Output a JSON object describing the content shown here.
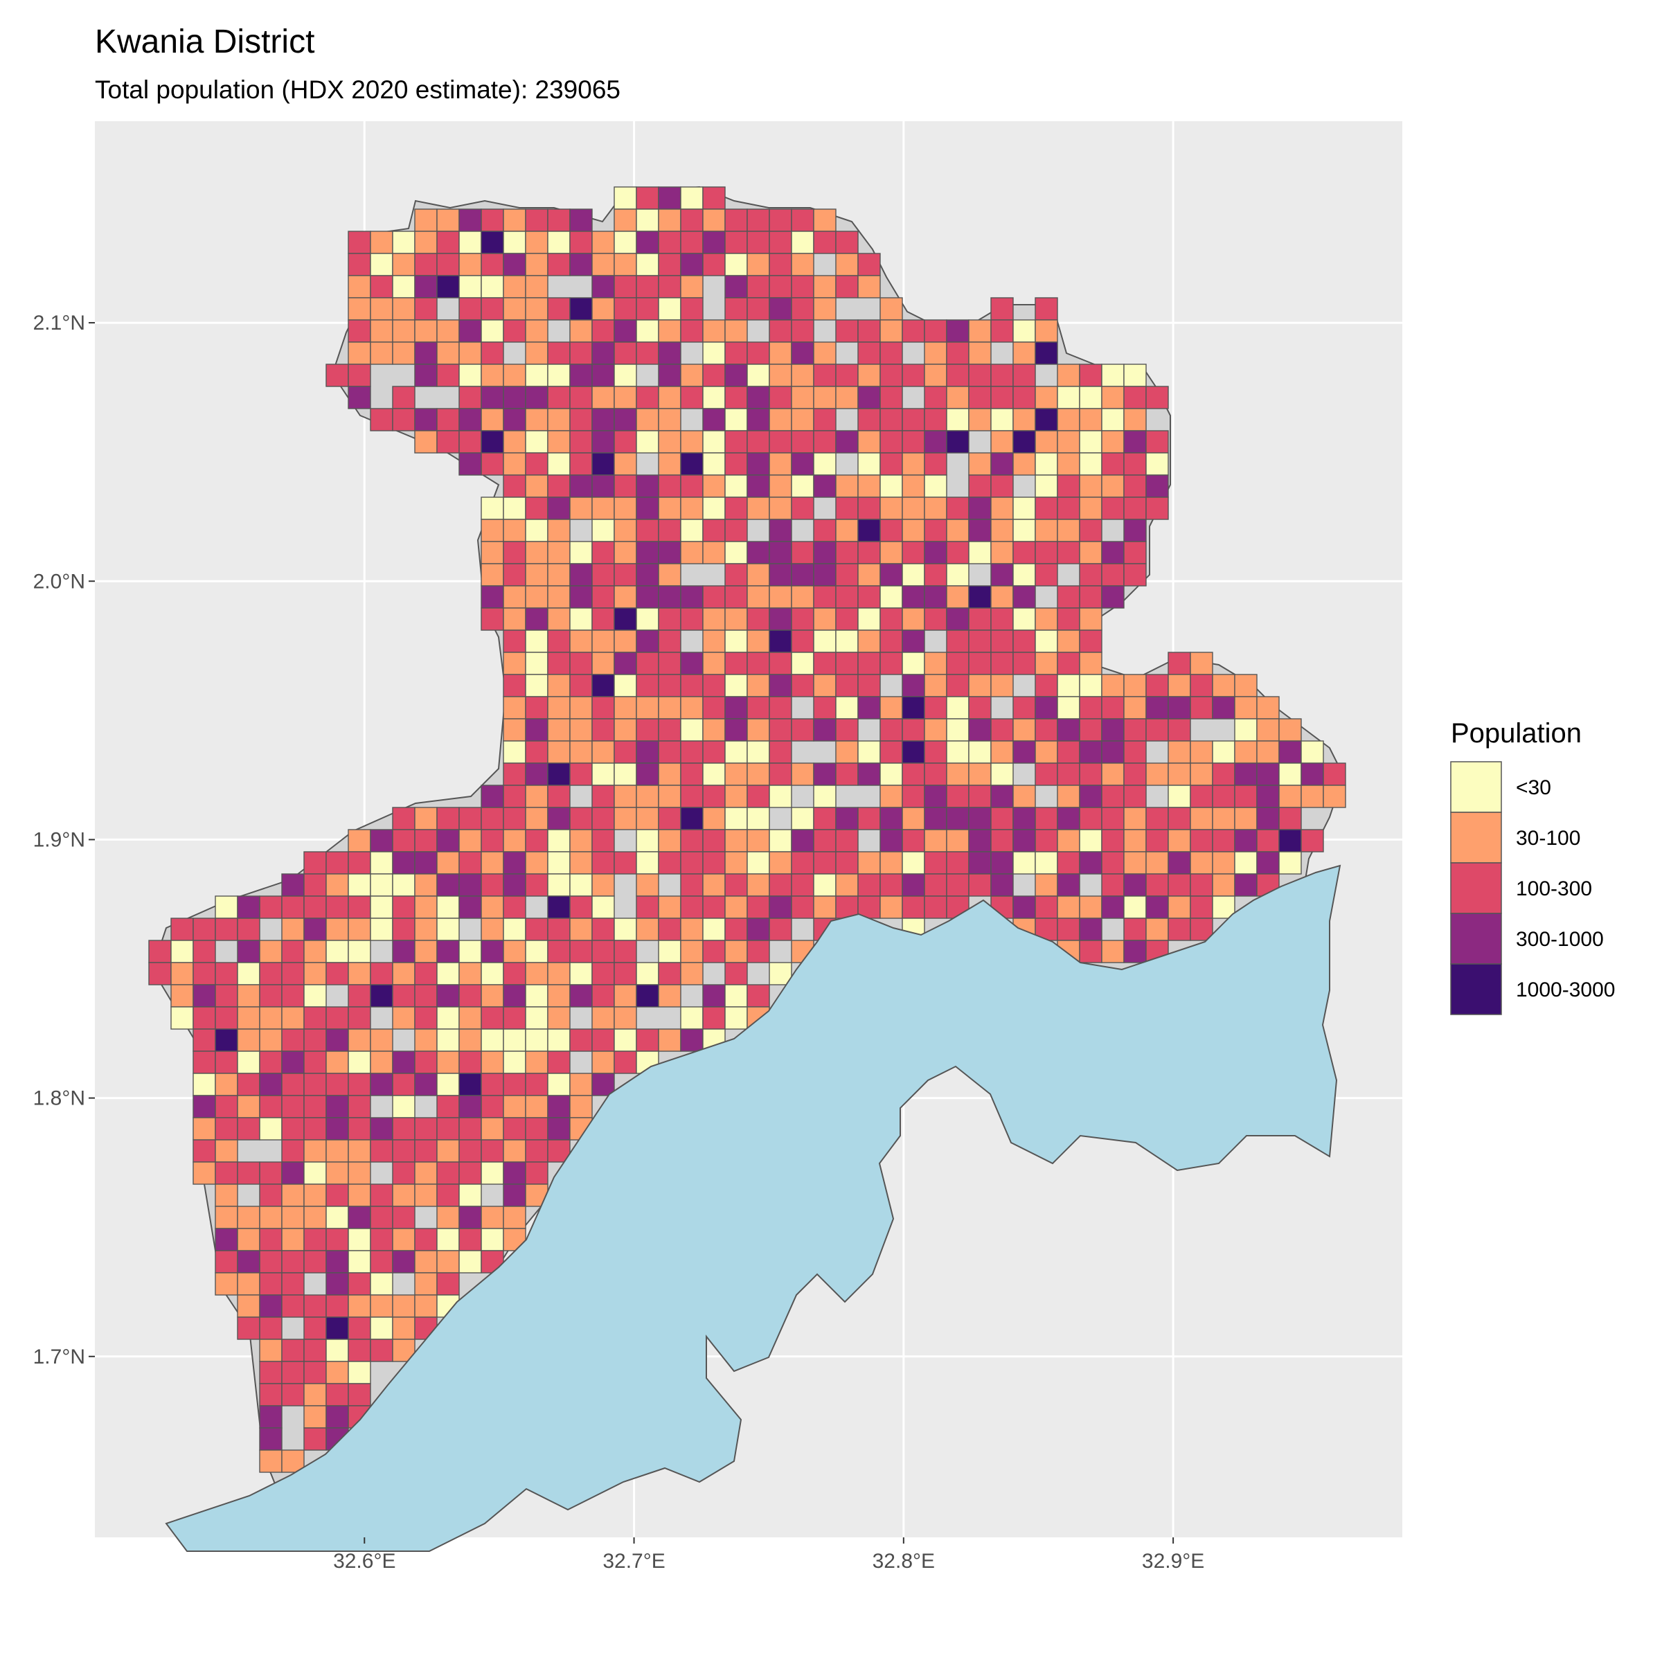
{
  "title": "Kwania District",
  "subtitle": "Total population (HDX 2020 estimate): 239065",
  "map": {
    "x_ticks": [
      {
        "value": 32.6,
        "label": "32.6°E"
      },
      {
        "value": 32.7,
        "label": "32.7°E"
      },
      {
        "value": 32.8,
        "label": "32.8°E"
      },
      {
        "value": 32.9,
        "label": "32.9°E"
      }
    ],
    "y_ticks": [
      {
        "value": 2.1,
        "label": "2.1°N"
      },
      {
        "value": 2.0,
        "label": "2.0°N"
      },
      {
        "value": 1.9,
        "label": "1.9°N"
      },
      {
        "value": 1.8,
        "label": "1.8°N"
      },
      {
        "value": 1.7,
        "label": "1.7°N"
      }
    ],
    "xlim": [
      32.5,
      32.985
    ],
    "ylim": [
      1.63,
      2.178
    ],
    "colors": {
      "panel_background": "#ebebeb",
      "grid": "#ffffff",
      "district_land": "#d3d3d3",
      "lake": "#add8e6",
      "outline": "#555555"
    }
  },
  "legend": {
    "title": "Population",
    "position": "right",
    "entries": [
      {
        "label": "<30",
        "color": "#fcfdbf"
      },
      {
        "label": "30-100",
        "color": "#fea06d"
      },
      {
        "label": "100-300",
        "color": "#de4968"
      },
      {
        "label": "300-1000",
        "color": "#8c2981"
      },
      {
        "label": "1000-3000",
        "color": "#3b0f70"
      }
    ]
  }
}
